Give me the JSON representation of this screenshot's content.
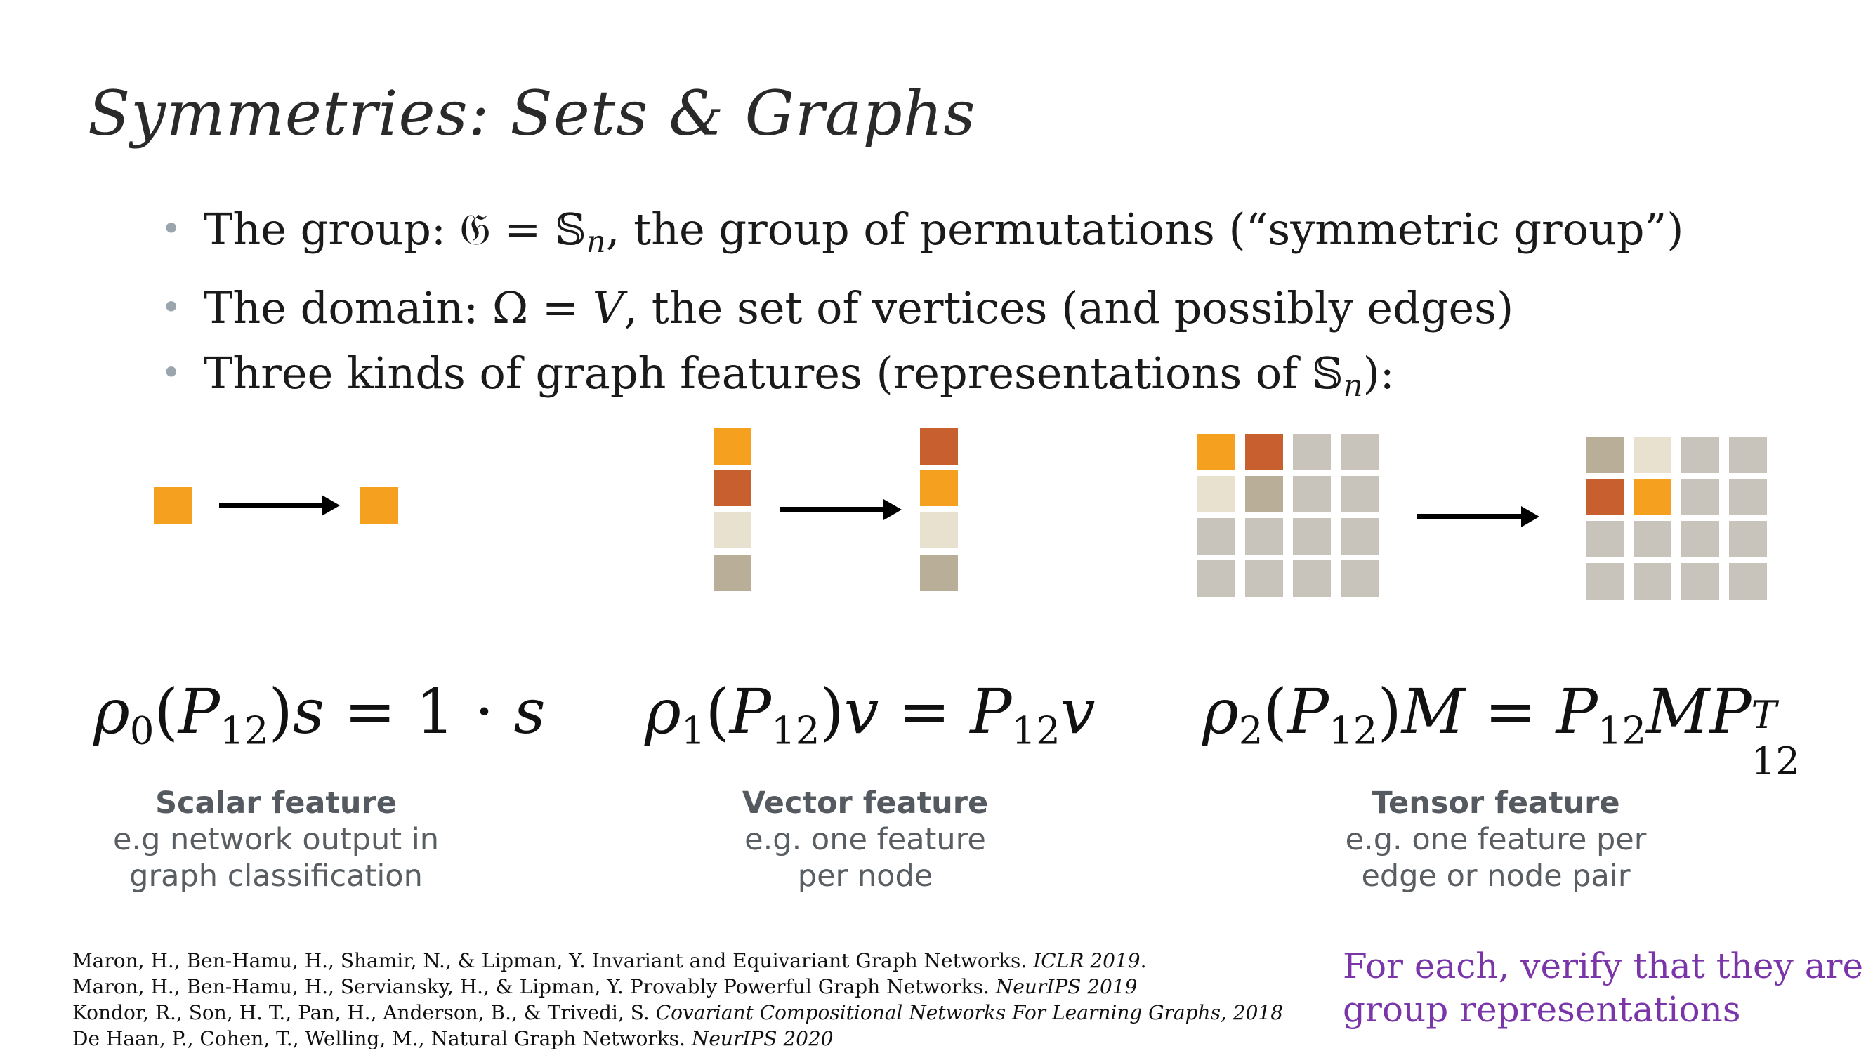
{
  "title": "Symmetries: Sets & Graphs",
  "bullets": [
    {
      "pre": "The group: ",
      "math": "𝔊 = 𝕊",
      "sub": "n",
      "post": ", the group of permutations (“symmetric group”)"
    },
    {
      "pre": "The domain: ",
      "math": "Ω = ",
      "mathit": "V",
      "post": ", the set of vertices (and possibly edges)"
    },
    {
      "pre": "Three kinds of graph features (representations of ",
      "math": "𝕊",
      "sub": "n",
      "post": "):"
    }
  ],
  "colors": {
    "orange": "#f5a01e",
    "rust": "#c75f2e",
    "cream": "#e8e1d0",
    "tan": "#b9af98",
    "gray": "#c8c3bb",
    "verify_purple": "#7a35a8"
  },
  "formulas": {
    "scalar": {
      "rho": "ρ",
      "rho_sub": "0",
      "p": "P",
      "p_sub": "12",
      "rest_var": "s",
      "rhs": " = 1 · ",
      "rhs_var": "s"
    },
    "vector": {
      "rho": "ρ",
      "rho_sub": "1",
      "p": "P",
      "p_sub": "12",
      "rest_var": "v",
      "rhs": " = ",
      "rhs_p": "P",
      "rhs_p_sub": "12",
      "rhs_var": "v"
    },
    "tensor": {
      "rho": "ρ",
      "rho_sub": "2",
      "p": "P",
      "p_sub": "12",
      "rest_var": "M",
      "rhs": " = ",
      "rhs_p": "P",
      "rhs_p_sub": "12",
      "rhs_m": "M",
      "rhs_p2": "P",
      "rhs_p2_sub": "12",
      "rhs_p2_sup": "T"
    }
  },
  "captions": {
    "scalar": {
      "head": "Scalar feature",
      "line1": "e.g network output in",
      "line2": "graph classification"
    },
    "vector": {
      "head": "Vector feature",
      "line1": "e.g. one feature",
      "line2": "per node"
    },
    "tensor": {
      "head": "Tensor feature",
      "line1": "e.g. one feature per",
      "line2": "edge or node pair"
    }
  },
  "references": [
    {
      "text": "Maron, H., Ben-Hamu, H., Shamir, N., & Lipman, Y. Invariant and Equivariant Graph Networks. ",
      "venue": "ICLR 2019",
      "tail": "."
    },
    {
      "text": "Maron, H., Ben-Hamu, H., Serviansky, H., & Lipman, Y. Provably Powerful Graph Networks. ",
      "venue": "NeurIPS 2019",
      "tail": ""
    },
    {
      "text": "Kondor, R., Son, H. T., Pan, H., Anderson, B., & Trivedi, S. ",
      "venue": "Covariant Compositional Networks For Learning Graphs, 2018",
      "tail": ""
    },
    {
      "text": "De Haan, P., Cohen, T., Welling, M., Natural Graph Networks. ",
      "venue": "NeurIPS 2020",
      "tail": ""
    }
  ],
  "verify": {
    "line1": "For each, verify that they are",
    "line2": "group representations"
  }
}
